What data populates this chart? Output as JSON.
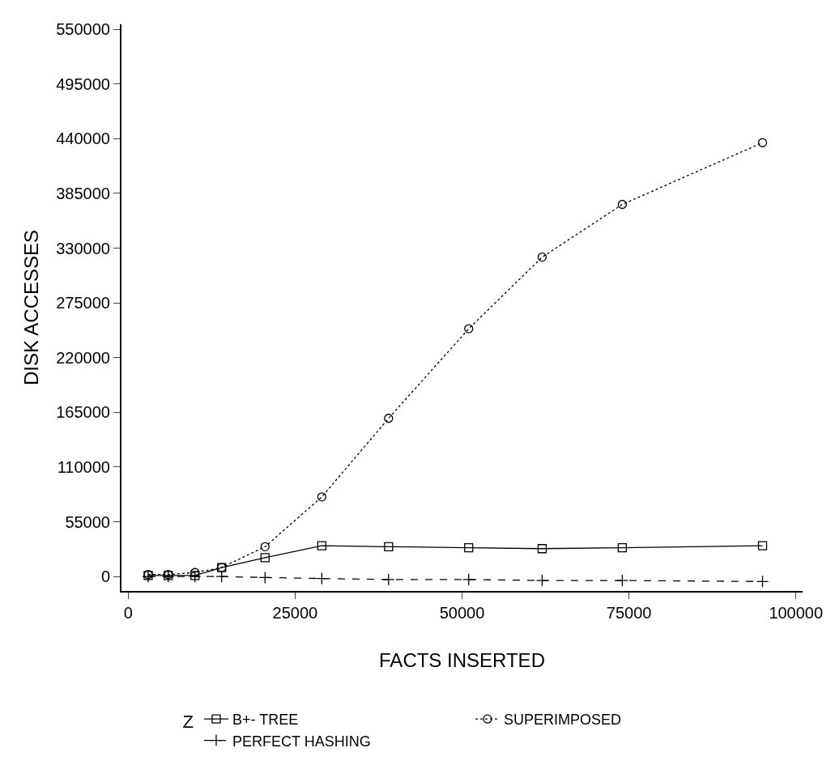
{
  "chart_data": {
    "type": "line",
    "xlabel": "FACTS INSERTED",
    "ylabel": "DISK ACCESSES",
    "legend_title": "Z",
    "x": [
      3000,
      6000,
      10000,
      14000,
      20500,
      29000,
      39000,
      51000,
      62000,
      74000,
      95000
    ],
    "series": [
      {
        "name": "B+- TREE",
        "color": "#000000",
        "marker": "square",
        "line_style": "solid",
        "values": [
          1000,
          1000,
          1000,
          9000,
          19000,
          31000,
          30000,
          29000,
          28000,
          29000,
          31000
        ]
      },
      {
        "name": "SUPERIMPOSED",
        "color": "#000000",
        "marker": "circle",
        "line_style": "dotted",
        "values": [
          2000,
          2000,
          4000,
          9000,
          30000,
          80000,
          159000,
          249000,
          321000,
          374000,
          436000
        ]
      },
      {
        "name": "PERFECT HASHING",
        "color": "#000000",
        "marker": "cross",
        "line_style": "dashed",
        "values": [
          0,
          0,
          0,
          0,
          -1000,
          -2000,
          -3000,
          -3000,
          -4000,
          -4000,
          -5000
        ]
      }
    ],
    "xlim": [
      -1000,
      101000
    ],
    "xticks": [
      0,
      25000,
      50000,
      75000,
      100000
    ],
    "ylim": [
      -14500,
      555000
    ],
    "yticks": [
      0,
      55000,
      110000,
      165000,
      220000,
      275000,
      330000,
      385000,
      440000,
      495000,
      550000
    ],
    "legend": "bottom"
  }
}
